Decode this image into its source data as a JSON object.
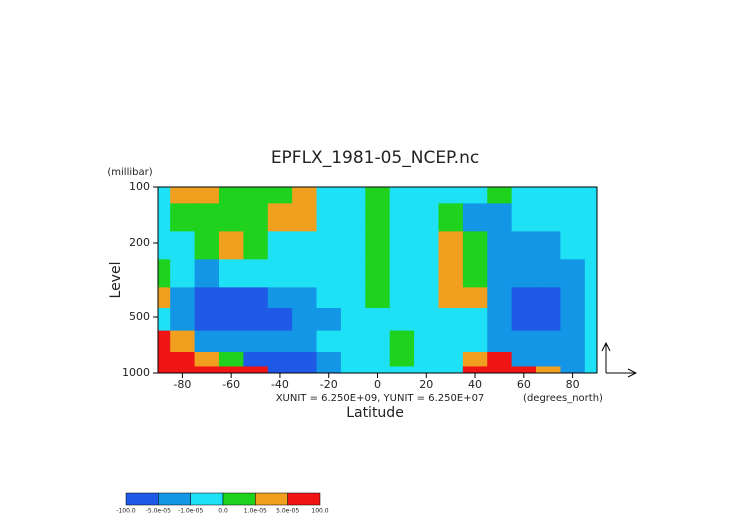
{
  "chart_data": {
    "type": "contour",
    "title": "EPFLX_1981-05_NCEP.nc",
    "ylabel": "Level",
    "yunit": "(millibar)",
    "xlabel": "Latitude",
    "xunit": "(degrees_north)",
    "note": "XUNIT = 6.250E+09, YUNIT = 6.250E+07",
    "x": [
      -90,
      -80,
      -70,
      -60,
      -50,
      -40,
      -30,
      -20,
      -10,
      0,
      10,
      20,
      30,
      40,
      50,
      60,
      70,
      80,
      90
    ],
    "y": [
      100,
      150,
      200,
      300,
      400,
      500,
      700,
      850,
      1000
    ],
    "xlim": [
      -90,
      90
    ],
    "ylim": [
      1000,
      100
    ],
    "ylog": true,
    "xticks": [
      -80,
      -60,
      -40,
      -20,
      0,
      20,
      40,
      60,
      80
    ],
    "yticks": [
      100,
      200,
      500,
      1000
    ],
    "z": [
      [
        -5e-06,
        3e-05,
        3e-05,
        5e-06,
        5e-06,
        5e-06,
        3e-05,
        -5e-06,
        -5e-06,
        5e-06,
        -5e-06,
        -5e-06,
        -5e-06,
        -5e-06,
        5e-06,
        -5e-06,
        -5e-06,
        -5e-06,
        -5e-06
      ],
      [
        -5e-06,
        5e-06,
        5e-06,
        5e-06,
        5e-06,
        3e-05,
        3e-05,
        -5e-06,
        -5e-06,
        5e-06,
        -5e-06,
        -5e-06,
        5e-06,
        -3e-05,
        -3e-05,
        -5e-06,
        -5e-06,
        -5e-06,
        -5e-06
      ],
      [
        -5e-06,
        -5e-06,
        5e-06,
        3e-05,
        5e-06,
        -5e-06,
        -5e-06,
        -5e-06,
        -5e-06,
        5e-06,
        -5e-06,
        -5e-06,
        3e-05,
        5e-06,
        -3e-05,
        -3e-05,
        -3e-05,
        -5e-06,
        -5e-06
      ],
      [
        5e-06,
        -5e-06,
        -3e-05,
        -5e-06,
        -5e-06,
        -5e-06,
        -5e-06,
        -5e-06,
        -5e-06,
        5e-06,
        -5e-06,
        -5e-06,
        3e-05,
        5e-06,
        -3e-05,
        -3e-05,
        -3e-05,
        -3e-05,
        -5e-06
      ],
      [
        3e-05,
        -3e-05,
        -7e-05,
        -7e-05,
        -7e-05,
        -3e-05,
        -3e-05,
        -5e-06,
        -5e-06,
        5e-06,
        -5e-06,
        -5e-06,
        3e-05,
        3e-05,
        -3e-05,
        -7e-05,
        -7e-05,
        -3e-05,
        -5e-06
      ],
      [
        -5e-06,
        -3e-05,
        -7e-05,
        -7e-05,
        -7e-05,
        -7e-05,
        -3e-05,
        -3e-05,
        -5e-06,
        -5e-06,
        -5e-06,
        -5e-06,
        -5e-06,
        -5e-06,
        -3e-05,
        -7e-05,
        -7e-05,
        -3e-05,
        -5e-06
      ],
      [
        7e-05,
        3e-05,
        -3e-05,
        -3e-05,
        -3e-05,
        -3e-05,
        -3e-05,
        -5e-06,
        -5e-06,
        -5e-06,
        5e-06,
        -5e-06,
        -5e-06,
        -5e-06,
        -3e-05,
        -3e-05,
        -3e-05,
        -3e-05,
        -5e-06
      ],
      [
        7e-05,
        7e-05,
        3e-05,
        5e-06,
        -7e-05,
        -7e-05,
        -7e-05,
        -3e-05,
        -5e-06,
        -5e-06,
        5e-06,
        -5e-06,
        -5e-06,
        3e-05,
        7e-05,
        -3e-05,
        -3e-05,
        -3e-05,
        -5e-06
      ],
      [
        7e-05,
        7e-05,
        7e-05,
        7e-05,
        7e-05,
        -7e-05,
        -7e-05,
        -3e-05,
        -5e-06,
        -5e-06,
        -5e-06,
        -5e-06,
        -5e-06,
        7e-05,
        7e-05,
        7e-05,
        3e-05,
        -3e-05,
        -5e-06
      ]
    ],
    "levels": [
      {
        "value": -100,
        "label": "-100.0"
      },
      {
        "value": -5e-05,
        "label": "-5.0e-05"
      },
      {
        "value": -1e-05,
        "label": "-1.0e-05"
      },
      {
        "value": 0,
        "label": "0.0"
      },
      {
        "value": 1e-05,
        "label": "1.0e-05"
      },
      {
        "value": 5e-05,
        "label": "5.0e-05"
      },
      {
        "value": 100,
        "label": "100.0"
      }
    ],
    "colors": [
      "#1e5ae6",
      "#1496e6",
      "#1ee1f5",
      "#1ed21e",
      "#f0a01e",
      "#f01414"
    ]
  }
}
